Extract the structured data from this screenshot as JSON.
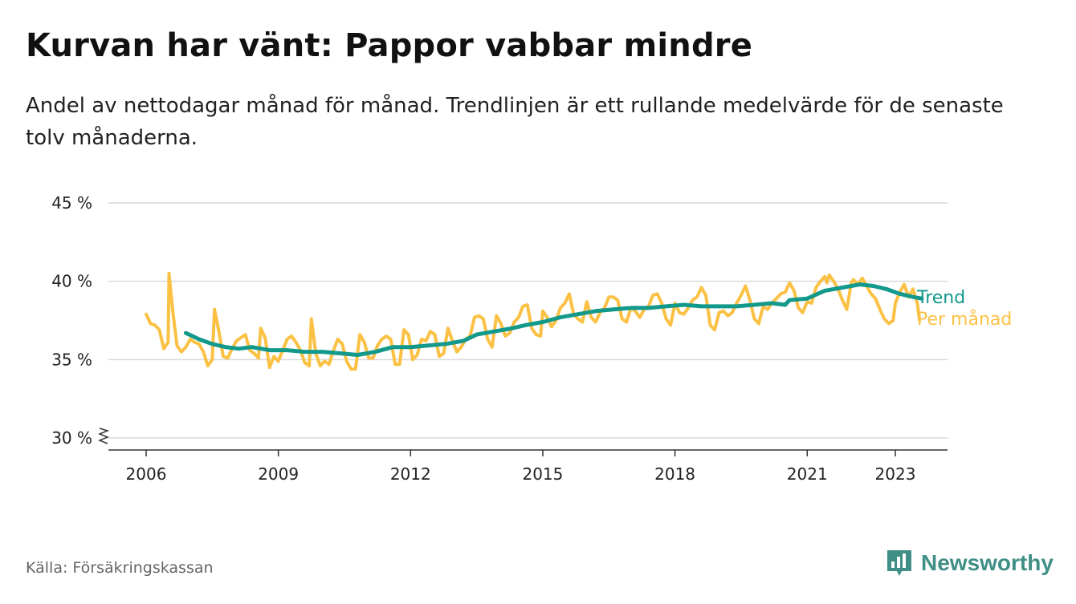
{
  "header": {
    "title": "Kurvan har vänt: Pappor vabbar mindre",
    "subtitle": "Andel av nettodagar månad för månad. Trendlinjen är ett rullande medelvärde för de senaste tolv månaderna."
  },
  "footer": {
    "source": "Källa: Försäkringskassan",
    "brand": "Newsworthy",
    "brand_icon": "bar-chart-speech-bubble-icon"
  },
  "colors": {
    "monthly": "#fbc145",
    "trend": "#12998c",
    "grid": "#d9d9d9",
    "axis": "#333333",
    "brand": "#3f8f86"
  },
  "chart_data": {
    "type": "line",
    "title": "",
    "xlabel": "",
    "ylabel": "",
    "x_unit": "year (fractional)",
    "ylim": [
      30,
      45
    ],
    "y_ticks": [
      {
        "value": 30,
        "label": "30 %"
      },
      {
        "value": 35,
        "label": "35 %"
      },
      {
        "value": 40,
        "label": "40 %"
      },
      {
        "value": 45,
        "label": "45 %"
      }
    ],
    "y_axis_break": true,
    "x_ticks": [
      {
        "value": 2006,
        "label": "2006"
      },
      {
        "value": 2009,
        "label": "2009"
      },
      {
        "value": 2012,
        "label": "2012"
      },
      {
        "value": 2015,
        "label": "2015"
      },
      {
        "value": 2018,
        "label": "2018"
      },
      {
        "value": 2021,
        "label": "2021"
      },
      {
        "value": 2023,
        "label": "2023"
      }
    ],
    "grid": true,
    "legend": "direct labels at line ends (right)",
    "series": [
      {
        "name": "Per månad",
        "color": "#fbc145",
        "points": [
          [
            2006.0,
            37.9
          ],
          [
            2006.1,
            37.3
          ],
          [
            2006.2,
            37.2
          ],
          [
            2006.3,
            36.9
          ],
          [
            2006.4,
            35.7
          ],
          [
            2006.5,
            36.1
          ],
          [
            2006.52,
            40.5
          ],
          [
            2006.6,
            38.2
          ],
          [
            2006.7,
            35.9
          ],
          [
            2006.8,
            35.5
          ],
          [
            2006.9,
            35.8
          ],
          [
            2007.0,
            36.3
          ],
          [
            2007.1,
            36.1
          ],
          [
            2007.2,
            36.0
          ],
          [
            2007.3,
            35.5
          ],
          [
            2007.4,
            34.6
          ],
          [
            2007.5,
            35.0
          ],
          [
            2007.55,
            38.2
          ],
          [
            2007.65,
            36.8
          ],
          [
            2007.75,
            35.2
          ],
          [
            2007.85,
            35.1
          ],
          [
            2007.95,
            35.7
          ],
          [
            2008.05,
            36.2
          ],
          [
            2008.15,
            36.4
          ],
          [
            2008.25,
            36.6
          ],
          [
            2008.35,
            35.6
          ],
          [
            2008.45,
            35.4
          ],
          [
            2008.55,
            35.1
          ],
          [
            2008.6,
            37.0
          ],
          [
            2008.7,
            36.4
          ],
          [
            2008.8,
            34.5
          ],
          [
            2008.9,
            35.2
          ],
          [
            2009.0,
            34.9
          ],
          [
            2009.1,
            35.6
          ],
          [
            2009.2,
            36.3
          ],
          [
            2009.3,
            36.5
          ],
          [
            2009.4,
            36.1
          ],
          [
            2009.5,
            35.6
          ],
          [
            2009.6,
            34.8
          ],
          [
            2009.7,
            34.6
          ],
          [
            2009.75,
            37.6
          ],
          [
            2009.85,
            35.4
          ],
          [
            2009.95,
            34.6
          ],
          [
            2010.05,
            34.9
          ],
          [
            2010.15,
            34.7
          ],
          [
            2010.25,
            35.6
          ],
          [
            2010.35,
            36.3
          ],
          [
            2010.45,
            36.0
          ],
          [
            2010.55,
            34.9
          ],
          [
            2010.65,
            34.4
          ],
          [
            2010.75,
            34.4
          ],
          [
            2010.85,
            36.6
          ],
          [
            2010.95,
            36.1
          ],
          [
            2011.05,
            35.1
          ],
          [
            2011.15,
            35.1
          ],
          [
            2011.25,
            35.9
          ],
          [
            2011.35,
            36.3
          ],
          [
            2011.45,
            36.5
          ],
          [
            2011.55,
            36.3
          ],
          [
            2011.65,
            34.7
          ],
          [
            2011.75,
            34.7
          ],
          [
            2011.85,
            36.9
          ],
          [
            2011.95,
            36.6
          ],
          [
            2012.05,
            35.0
          ],
          [
            2012.15,
            35.3
          ],
          [
            2012.25,
            36.3
          ],
          [
            2012.35,
            36.2
          ],
          [
            2012.45,
            36.8
          ],
          [
            2012.55,
            36.6
          ],
          [
            2012.65,
            35.2
          ],
          [
            2012.75,
            35.4
          ],
          [
            2012.85,
            37.0
          ],
          [
            2012.95,
            36.2
          ],
          [
            2013.05,
            35.5
          ],
          [
            2013.15,
            35.8
          ],
          [
            2013.25,
            36.3
          ],
          [
            2013.35,
            36.5
          ],
          [
            2013.45,
            37.7
          ],
          [
            2013.55,
            37.8
          ],
          [
            2013.65,
            37.6
          ],
          [
            2013.75,
            36.3
          ],
          [
            2013.85,
            35.8
          ],
          [
            2013.95,
            37.8
          ],
          [
            2014.05,
            37.3
          ],
          [
            2014.15,
            36.5
          ],
          [
            2014.25,
            36.7
          ],
          [
            2014.35,
            37.4
          ],
          [
            2014.45,
            37.7
          ],
          [
            2014.55,
            38.4
          ],
          [
            2014.65,
            38.5
          ],
          [
            2014.75,
            37.0
          ],
          [
            2014.85,
            36.6
          ],
          [
            2014.95,
            36.5
          ],
          [
            2015.0,
            38.1
          ],
          [
            2015.1,
            37.7
          ],
          [
            2015.2,
            37.1
          ],
          [
            2015.3,
            37.5
          ],
          [
            2015.4,
            38.3
          ],
          [
            2015.5,
            38.6
          ],
          [
            2015.6,
            39.2
          ],
          [
            2015.7,
            37.9
          ],
          [
            2015.8,
            37.6
          ],
          [
            2015.9,
            37.4
          ],
          [
            2016.0,
            38.7
          ],
          [
            2016.1,
            37.7
          ],
          [
            2016.2,
            37.4
          ],
          [
            2016.3,
            38.0
          ],
          [
            2016.4,
            38.3
          ],
          [
            2016.5,
            39.0
          ],
          [
            2016.6,
            39.0
          ],
          [
            2016.7,
            38.8
          ],
          [
            2016.8,
            37.6
          ],
          [
            2016.9,
            37.4
          ],
          [
            2017.0,
            38.3
          ],
          [
            2017.1,
            38.1
          ],
          [
            2017.2,
            37.7
          ],
          [
            2017.3,
            38.2
          ],
          [
            2017.4,
            38.4
          ],
          [
            2017.5,
            39.1
          ],
          [
            2017.6,
            39.2
          ],
          [
            2017.7,
            38.6
          ],
          [
            2017.8,
            37.6
          ],
          [
            2017.9,
            37.2
          ],
          [
            2018.0,
            38.6
          ],
          [
            2018.1,
            38.0
          ],
          [
            2018.2,
            37.9
          ],
          [
            2018.3,
            38.3
          ],
          [
            2018.4,
            38.8
          ],
          [
            2018.5,
            39.0
          ],
          [
            2018.6,
            39.6
          ],
          [
            2018.7,
            39.1
          ],
          [
            2018.8,
            37.2
          ],
          [
            2018.9,
            36.9
          ],
          [
            2019.0,
            38.0
          ],
          [
            2019.1,
            38.1
          ],
          [
            2019.2,
            37.8
          ],
          [
            2019.3,
            38.0
          ],
          [
            2019.4,
            38.6
          ],
          [
            2019.5,
            39.1
          ],
          [
            2019.6,
            39.7
          ],
          [
            2019.7,
            38.8
          ],
          [
            2019.8,
            37.6
          ],
          [
            2019.9,
            37.3
          ],
          [
            2020.0,
            38.4
          ],
          [
            2020.1,
            38.2
          ],
          [
            2020.2,
            38.6
          ],
          [
            2020.3,
            38.9
          ],
          [
            2020.4,
            39.2
          ],
          [
            2020.5,
            39.3
          ],
          [
            2020.6,
            39.9
          ],
          [
            2020.7,
            39.4
          ],
          [
            2020.8,
            38.3
          ],
          [
            2020.9,
            38.0
          ],
          [
            2021.0,
            38.7
          ],
          [
            2021.1,
            38.6
          ],
          [
            2021.2,
            39.6
          ],
          [
            2021.3,
            40.0
          ],
          [
            2021.4,
            40.3
          ],
          [
            2021.45,
            39.9
          ],
          [
            2021.5,
            40.4
          ],
          [
            2021.6,
            40.0
          ],
          [
            2021.7,
            39.5
          ],
          [
            2021.8,
            38.8
          ],
          [
            2021.9,
            38.2
          ],
          [
            2022.0,
            39.9
          ],
          [
            2022.05,
            40.1
          ],
          [
            2022.15,
            39.8
          ],
          [
            2022.25,
            40.2
          ],
          [
            2022.35,
            39.7
          ],
          [
            2022.45,
            39.2
          ],
          [
            2022.55,
            38.9
          ],
          [
            2022.65,
            38.2
          ],
          [
            2022.75,
            37.6
          ],
          [
            2022.85,
            37.3
          ],
          [
            2022.95,
            37.5
          ],
          [
            2023.0,
            38.6
          ],
          [
            2023.1,
            39.3
          ],
          [
            2023.2,
            39.8
          ],
          [
            2023.3,
            39.0
          ],
          [
            2023.4,
            39.5
          ],
          [
            2023.5,
            38.6
          ],
          [
            2023.55,
            37.5
          ]
        ]
      },
      {
        "name": "Trend",
        "color": "#12998c",
        "points": [
          [
            2006.9,
            36.7
          ],
          [
            2007.2,
            36.3
          ],
          [
            2007.5,
            36.0
          ],
          [
            2007.8,
            35.8
          ],
          [
            2008.1,
            35.7
          ],
          [
            2008.4,
            35.8
          ],
          [
            2008.8,
            35.6
          ],
          [
            2009.2,
            35.6
          ],
          [
            2009.6,
            35.5
          ],
          [
            2010.0,
            35.5
          ],
          [
            2010.4,
            35.4
          ],
          [
            2010.8,
            35.3
          ],
          [
            2011.2,
            35.5
          ],
          [
            2011.6,
            35.8
          ],
          [
            2012.0,
            35.8
          ],
          [
            2012.4,
            35.9
          ],
          [
            2012.8,
            36.0
          ],
          [
            2013.2,
            36.2
          ],
          [
            2013.5,
            36.6
          ],
          [
            2013.9,
            36.8
          ],
          [
            2014.3,
            37.0
          ],
          [
            2014.6,
            37.2
          ],
          [
            2015.0,
            37.4
          ],
          [
            2015.4,
            37.7
          ],
          [
            2015.8,
            37.9
          ],
          [
            2016.2,
            38.1
          ],
          [
            2016.6,
            38.2
          ],
          [
            2017.0,
            38.3
          ],
          [
            2017.4,
            38.3
          ],
          [
            2017.8,
            38.4
          ],
          [
            2018.2,
            38.5
          ],
          [
            2018.6,
            38.4
          ],
          [
            2019.0,
            38.4
          ],
          [
            2019.4,
            38.4
          ],
          [
            2019.8,
            38.5
          ],
          [
            2020.2,
            38.6
          ],
          [
            2020.5,
            38.5
          ],
          [
            2020.6,
            38.8
          ],
          [
            2021.0,
            38.9
          ],
          [
            2021.4,
            39.4
          ],
          [
            2021.8,
            39.6
          ],
          [
            2022.2,
            39.8
          ],
          [
            2022.5,
            39.7
          ],
          [
            2022.8,
            39.5
          ],
          [
            2023.1,
            39.2
          ],
          [
            2023.4,
            39.0
          ],
          [
            2023.6,
            38.9
          ]
        ]
      }
    ]
  }
}
